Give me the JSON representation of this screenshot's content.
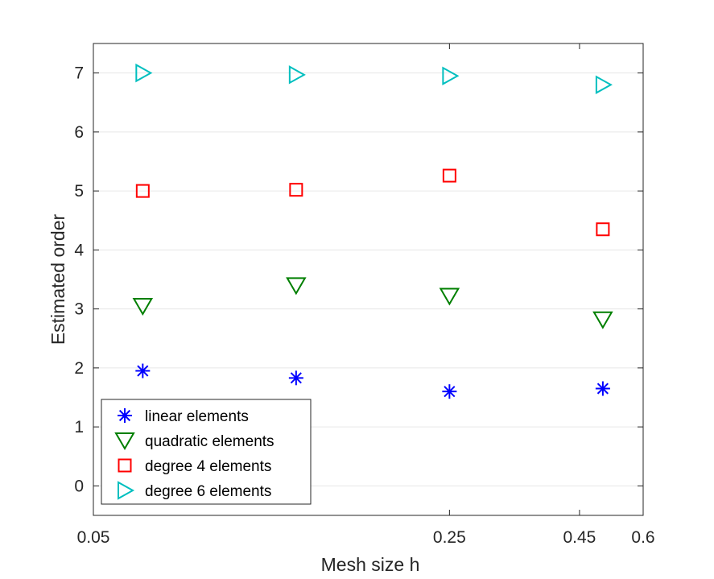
{
  "chart_data": {
    "type": "scatter",
    "title": "",
    "xlabel": "Mesh size h",
    "ylabel": "Estimated order",
    "xlim": [
      0.05,
      0.6
    ],
    "ylim": [
      -0.5,
      7.5
    ],
    "x_ticks": [
      {
        "value": 0.05,
        "label": "0.05"
      },
      {
        "value": 0.25,
        "label": "0.25"
      },
      {
        "value": 0.45,
        "label": "0.45"
      },
      {
        "value": 0.6,
        "label": "0.6"
      }
    ],
    "y_ticks": [
      {
        "value": 0,
        "label": "0"
      },
      {
        "value": 1,
        "label": "1"
      },
      {
        "value": 2,
        "label": "2"
      },
      {
        "value": 3,
        "label": "3"
      },
      {
        "value": 4,
        "label": "4"
      },
      {
        "value": 5,
        "label": "5"
      },
      {
        "value": 6,
        "label": "6"
      },
      {
        "value": 7,
        "label": "7"
      }
    ],
    "grid": "horizontal",
    "x_points": [
      0.0625,
      0.125,
      0.25,
      0.5
    ],
    "series": [
      {
        "name": "linear elements",
        "marker": "asterisk",
        "color": "#0000ff",
        "values": [
          1.95,
          1.83,
          1.6,
          1.65
        ]
      },
      {
        "name": "quadratic elements",
        "marker": "triangle-down",
        "color": "#007f00",
        "values": [
          3.05,
          3.4,
          3.22,
          2.82
        ]
      },
      {
        "name": "degree 4 elements",
        "marker": "square",
        "color": "#ff0000",
        "values": [
          5.0,
          5.02,
          5.26,
          4.35
        ]
      },
      {
        "name": "degree 6 elements",
        "marker": "triangle-right",
        "color": "#00bfbf",
        "values": [
          7.0,
          6.97,
          6.95,
          6.8
        ]
      }
    ],
    "legend_position": "bottom-left"
  }
}
